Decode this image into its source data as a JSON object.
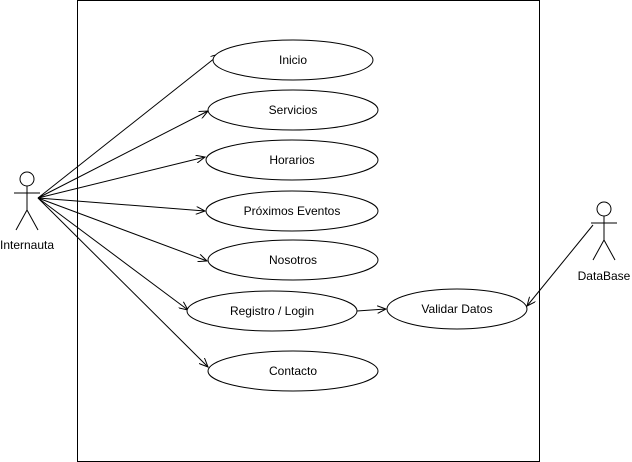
{
  "diagram": {
    "actors": {
      "user": {
        "label": "Internauta"
      },
      "database": {
        "label": "DataBase"
      }
    },
    "use_cases": {
      "inicio": {
        "label": "Inicio"
      },
      "servicios": {
        "label": "Servicios"
      },
      "horarios": {
        "label": "Horarios"
      },
      "eventos": {
        "label": "Próximos Eventos"
      },
      "nosotros": {
        "label": "Nosotros"
      },
      "registro": {
        "label": "Registro / Login"
      },
      "contacto": {
        "label": "Contacto"
      },
      "validar": {
        "label": "Validar Datos"
      }
    }
  }
}
